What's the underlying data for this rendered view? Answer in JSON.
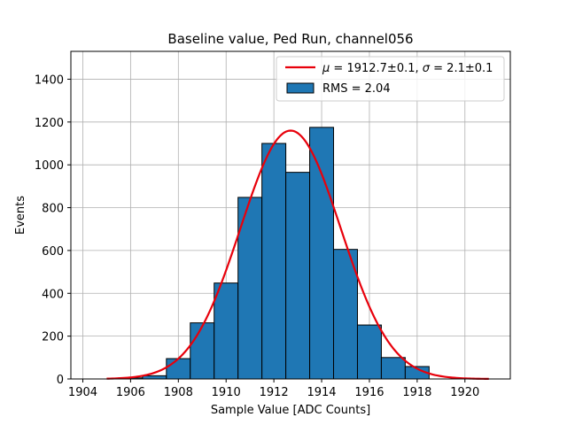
{
  "chart_data": {
    "type": "bar",
    "title": "Baseline value, Ped Run, channel056",
    "xlabel": "Sample Value [ADC Counts]",
    "ylabel": "Events",
    "xlim": [
      1903.5,
      1921.9
    ],
    "ylim": [
      0,
      1530
    ],
    "xticks": [
      1904,
      1906,
      1908,
      1910,
      1912,
      1914,
      1916,
      1918,
      1920
    ],
    "yticks": [
      0,
      200,
      400,
      600,
      800,
      1000,
      1200,
      1400
    ],
    "grid": true,
    "legend_position": "top-right",
    "histogram": {
      "name": "RMS = 2.04",
      "color": "#1f77b4",
      "bins": [
        {
          "left": 1905.5,
          "right": 1906.5,
          "value": 5
        },
        {
          "left": 1906.5,
          "right": 1907.5,
          "value": 15
        },
        {
          "left": 1907.5,
          "right": 1908.5,
          "value": 95
        },
        {
          "left": 1908.5,
          "right": 1909.5,
          "value": 262
        },
        {
          "left": 1909.5,
          "right": 1910.5,
          "value": 448
        },
        {
          "left": 1910.5,
          "right": 1911.5,
          "value": 848
        },
        {
          "left": 1911.5,
          "right": 1912.5,
          "value": 1100
        },
        {
          "left": 1912.5,
          "right": 1913.5,
          "value": 965
        },
        {
          "left": 1913.5,
          "right": 1914.5,
          "value": 1175
        },
        {
          "left": 1914.5,
          "right": 1915.5,
          "value": 605
        },
        {
          "left": 1915.5,
          "right": 1916.5,
          "value": 252
        },
        {
          "left": 1916.5,
          "right": 1917.5,
          "value": 100
        },
        {
          "left": 1917.5,
          "right": 1918.5,
          "value": 58
        }
      ]
    },
    "fit": {
      "name_parts": {
        "mu_sym": "μ",
        "mu_val": " = 1912.7±0.1, ",
        "sigma_sym": "σ",
        "sigma_val": " = 2.1±0.1"
      },
      "color": "#e8000b",
      "mu": 1912.7,
      "sigma": 2.1,
      "amplitude": 1160,
      "x_range": [
        1905,
        1921
      ]
    }
  }
}
